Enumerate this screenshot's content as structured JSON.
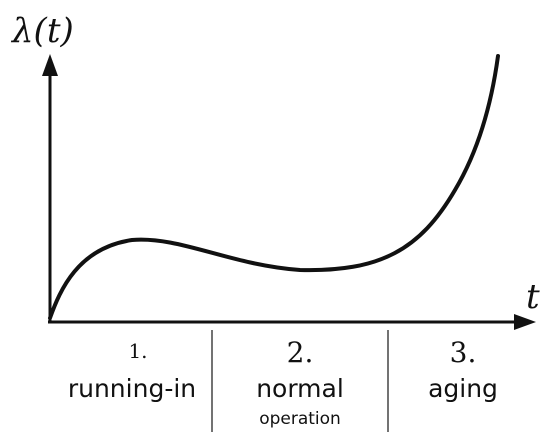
{
  "diagram": {
    "y_axis_label": "λ(t)",
    "x_axis_label": "t",
    "stroke_color": "#111111",
    "phases": [
      {
        "number": "1.",
        "label": "running-in",
        "sublabel": ""
      },
      {
        "number": "2.",
        "label": "normal",
        "sublabel": "operation"
      },
      {
        "number": "3.",
        "label": "aging",
        "sublabel": ""
      }
    ]
  }
}
